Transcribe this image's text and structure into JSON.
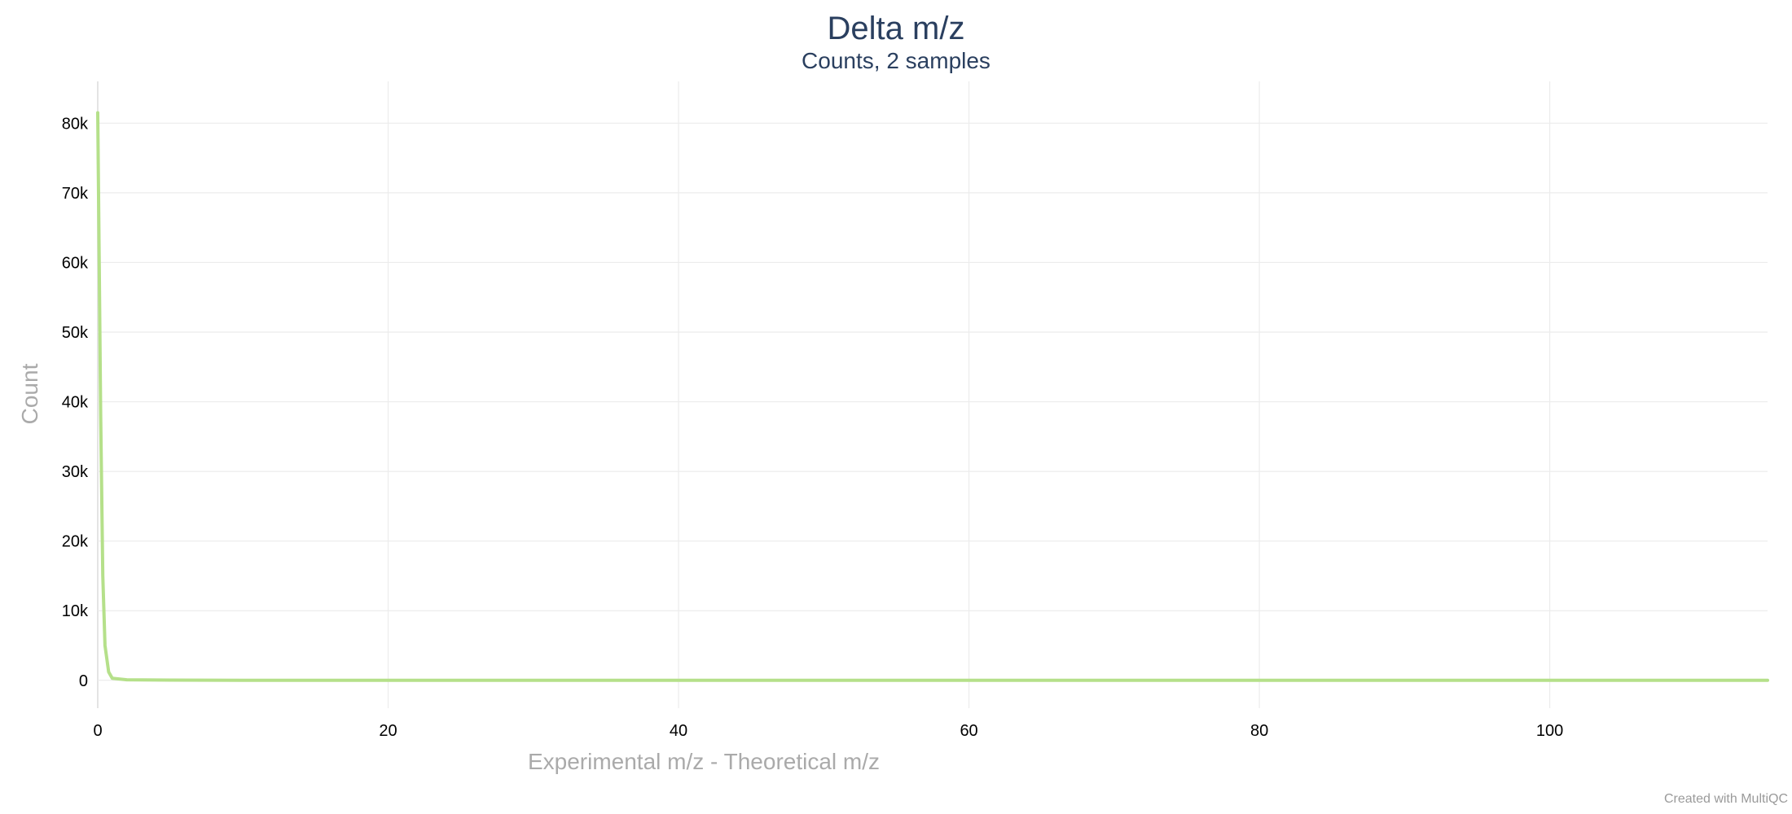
{
  "chart_data": {
    "type": "line",
    "title": "Delta m/z",
    "subtitle": "Counts, 2 samples",
    "xlabel": "Experimental m/z - Theoretical m/z",
    "ylabel": "Count",
    "xlim": [
      0,
      115
    ],
    "ylim": [
      -4000,
      86000
    ],
    "x_ticks": [
      0,
      20,
      40,
      60,
      80,
      100
    ],
    "y_ticks": [
      0,
      10000,
      20000,
      30000,
      40000,
      50000,
      60000,
      70000,
      80000
    ],
    "y_tick_labels": [
      "0",
      "10k",
      "20k",
      "30k",
      "40k",
      "50k",
      "60k",
      "70k",
      "80k"
    ],
    "grid": true,
    "series": [
      {
        "color": "#b5e08a",
        "x": [
          0,
          0.1,
          0.2,
          0.35,
          0.5,
          0.75,
          1.0,
          2,
          5,
          10,
          20,
          40,
          60,
          80,
          100,
          115
        ],
        "values": [
          81500,
          60000,
          38000,
          15000,
          5000,
          1200,
          300,
          80,
          30,
          10,
          5,
          3,
          2,
          1,
          1,
          0
        ]
      }
    ],
    "credit": "Created with MultiQC"
  }
}
